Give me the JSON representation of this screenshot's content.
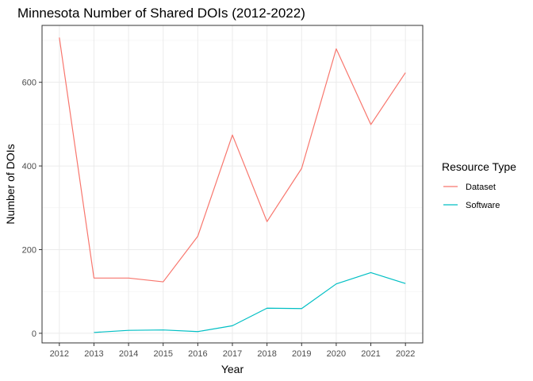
{
  "chart_data": {
    "type": "line",
    "title": "Minnesota Number of Shared DOIs (2012-2022)",
    "xlabel": "Year",
    "ylabel": "Number of DOIs",
    "x": [
      2012,
      2013,
      2014,
      2015,
      2016,
      2017,
      2018,
      2019,
      2020,
      2021,
      2022
    ],
    "xlim": [
      2011.5,
      2022.5
    ],
    "ylim": [
      -23,
      736
    ],
    "yticks": [
      0,
      200,
      400,
      600
    ],
    "grid": true,
    "legend_title": "Resource Type",
    "legend_position": "right",
    "series": [
      {
        "name": "Dataset",
        "color": "#F8766D",
        "values": [
          707,
          132,
          132,
          123,
          232,
          474,
          267,
          394,
          680,
          499,
          623
        ]
      },
      {
        "name": "Software",
        "color": "#00BFC4",
        "values": [
          null,
          2,
          7,
          8,
          4,
          18,
          60,
          59,
          118,
          145,
          119
        ]
      }
    ]
  }
}
